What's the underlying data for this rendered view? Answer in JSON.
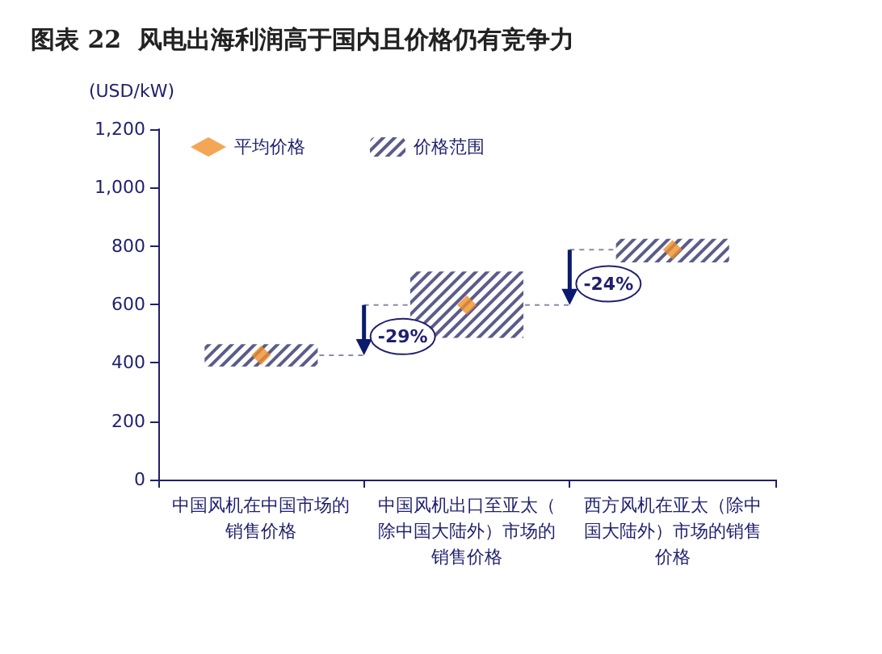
{
  "chart_data": {
    "type": "bar",
    "title": "图表 22  风电出海利润高于国内且价格仍有竞争力",
    "ylabel": "(USD/kW)",
    "categories": [
      "中国风机在中国市场的销售价格",
      "中国风机出口至亚太（除中国大陆外）市场的销售价格",
      "西方风机在亚太（除中国大陆外）市场的销售价格"
    ],
    "ylim": [
      0,
      1200
    ],
    "yticks": [
      0,
      200,
      400,
      600,
      800,
      {
        "value": 1000,
        "label": "1,000"
      },
      {
        "value": 1200,
        "label": "1,200"
      }
    ],
    "legend": "top left",
    "grid": false,
    "annotations": [
      {
        "text": "-29%",
        "x": "中国风机在中国市场的销售价格",
        "y": 426
      },
      {
        "text": "-24%",
        "x": "中国风机出口至亚太（除中国大陆外）市场的销售价格",
        "y": 598
      }
    ],
    "series": [
      {
        "name": "平均价格",
        "type": "scatter",
        "color": "#f0902a",
        "marker": "diamond",
        "x": [
          "中国风机在中国市场的销售价格",
          "中国风机出口至亚太（除中国大陆外）市场的销售价格",
          "西方风机在亚太（除中国大陆外）市场的销售价格"
        ],
        "values": [
          426,
          598,
          787
        ]
      },
      {
        "name": "价格范围",
        "color": "#5c5c8a",
        "base": [
          387,
          485,
          744
        ],
        "values": [
          77,
          228,
          81
        ]
      }
    ]
  }
}
